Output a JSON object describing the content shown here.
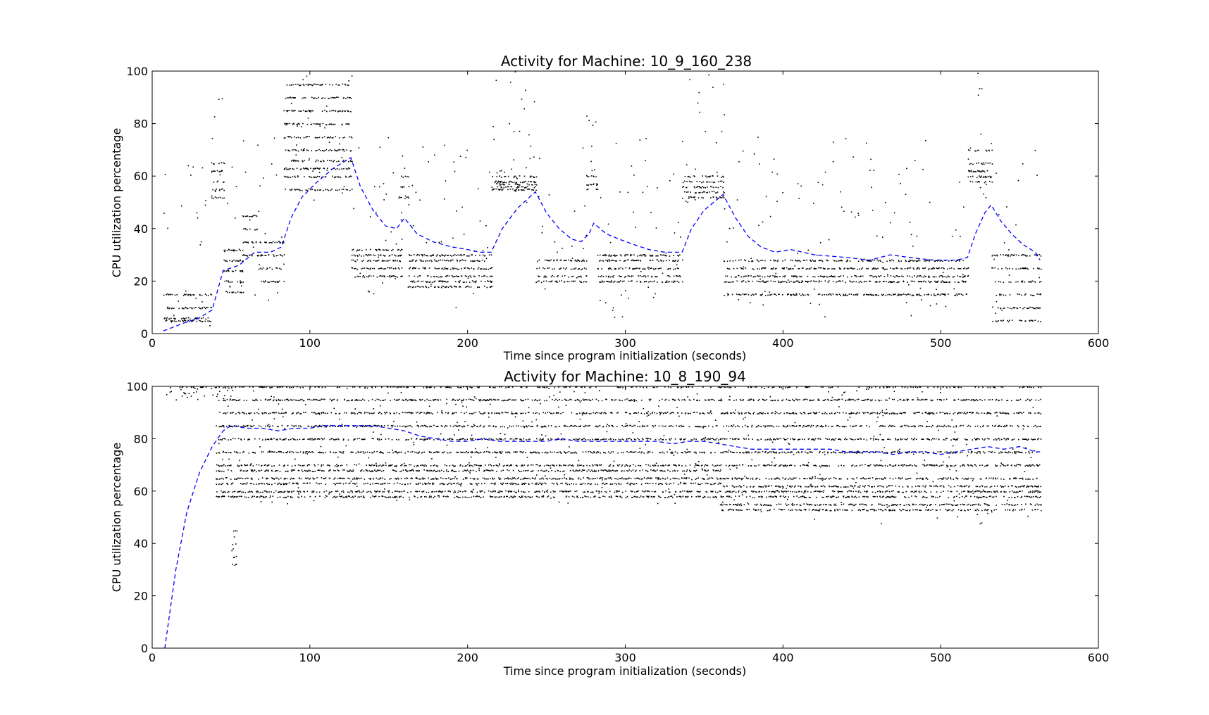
{
  "chart_data": [
    {
      "type": "scatter",
      "title": "Activity for Machine: 10_9_160_238",
      "xlabel": "Time since program initialization (seconds)",
      "ylabel": "CPU utilization percentage",
      "xlim": [
        0,
        600
      ],
      "ylim": [
        0,
        100
      ],
      "xticks": [
        0,
        100,
        200,
        300,
        400,
        500,
        600
      ],
      "yticks": [
        0,
        20,
        40,
        60,
        80,
        100
      ],
      "grid": false,
      "point_color": "#000000",
      "series": [
        {
          "style": "black dots",
          "segments": [
            {
              "x_range": [
                7,
                37
              ],
              "levels": [
                5,
                6,
                10,
                15
              ],
              "scatter_range": [
                3,
                65
              ]
            },
            {
              "x_range": [
                37,
                45
              ],
              "levels": [
                52,
                55,
                58,
                62,
                65
              ],
              "scatter_range": [
                50,
                100
              ]
            },
            {
              "x_range": [
                45,
                57
              ],
              "levels": [
                16,
                20,
                24,
                28,
                32
              ],
              "scatter_range": [
                5,
                65
              ]
            },
            {
              "x_range": [
                57,
                67
              ],
              "levels": [
                30,
                35,
                40,
                45
              ],
              "scatter_range": [
                10,
                80
              ]
            },
            {
              "x_range": [
                67,
                83
              ],
              "levels": [
                20,
                25,
                30,
                35
              ],
              "scatter_range": [
                10,
                80
              ]
            },
            {
              "x_range": [
                83,
                126
              ],
              "levels": [
                55,
                60,
                63,
                66,
                70,
                75,
                80,
                85,
                90,
                95
              ],
              "scatter_range": [
                50,
                100
              ]
            },
            {
              "x_range": [
                126,
                158
              ],
              "levels": [
                22,
                25,
                28,
                30,
                32
              ],
              "scatter_range": [
                15,
                80
              ]
            },
            {
              "x_range": [
                156,
                162
              ],
              "levels": [
                52,
                56,
                60
              ],
              "scatter_range": [
                45,
                75
              ]
            },
            {
              "x_range": [
                162,
                215
              ],
              "levels": [
                18,
                20,
                22,
                25,
                28,
                30
              ],
              "scatter_range": [
                10,
                75
              ]
            },
            {
              "x_range": [
                215,
                243
              ],
              "levels": [
                55,
                56,
                57,
                58,
                60
              ],
              "scatter_range": [
                50,
                100
              ]
            },
            {
              "x_range": [
                243,
                275
              ],
              "levels": [
                20,
                22,
                25,
                28
              ],
              "scatter_range": [
                15,
                75
              ]
            },
            {
              "x_range": [
                275,
                282
              ],
              "levels": [
                55,
                57,
                60
              ],
              "scatter_range": [
                50,
                90
              ]
            },
            {
              "x_range": [
                282,
                336
              ],
              "levels": [
                20,
                22,
                25,
                28,
                30
              ],
              "scatter_range": [
                5,
                75
              ]
            },
            {
              "x_range": [
                336,
                362
              ],
              "levels": [
                52,
                54,
                56,
                58,
                60
              ],
              "scatter_range": [
                50,
                100
              ]
            },
            {
              "x_range": [
                362,
                517
              ],
              "levels": [
                15,
                20,
                22,
                25,
                28
              ],
              "scatter_range": [
                5,
                75
              ]
            },
            {
              "x_range": [
                517,
                532
              ],
              "levels": [
                58,
                60,
                62,
                65,
                70
              ],
              "scatter_range": [
                50,
                100
              ]
            },
            {
              "x_range": [
                532,
                563
              ],
              "levels": [
                5,
                10,
                15,
                20,
                25,
                30
              ],
              "scatter_range": [
                5,
                70
              ]
            }
          ]
        },
        {
          "style": "blue dashed line",
          "color": "#0000ff",
          "x": [
            7,
            20,
            30,
            38,
            45,
            55,
            65,
            75,
            82,
            88,
            95,
            105,
            115,
            126,
            132,
            140,
            148,
            155,
            160,
            168,
            178,
            190,
            200,
            208,
            215,
            222,
            232,
            243,
            250,
            258,
            266,
            272,
            277,
            280,
            288,
            296,
            305,
            315,
            325,
            336,
            342,
            350,
            362,
            370,
            378,
            386,
            395,
            405,
            420,
            440,
            455,
            468,
            480,
            495,
            510,
            517,
            522,
            528,
            532,
            538,
            545,
            552,
            560,
            563
          ],
          "y": [
            1,
            4,
            6,
            9,
            24,
            26,
            31,
            31,
            33,
            44,
            52,
            58,
            63,
            67,
            56,
            47,
            41,
            40,
            44,
            38,
            35,
            33,
            32,
            31,
            31,
            40,
            48,
            54,
            46,
            40,
            36,
            35,
            38,
            42,
            38,
            36,
            34,
            32,
            31,
            31,
            40,
            47,
            53,
            44,
            37,
            33,
            31,
            32,
            30,
            29,
            28,
            30,
            29,
            28,
            28,
            29,
            38,
            46,
            49,
            43,
            38,
            34,
            31,
            28
          ]
        }
      ]
    },
    {
      "type": "scatter",
      "title": "Activity for Machine: 10_8_190_94",
      "xlabel": "Time since program initialization (seconds)",
      "ylabel": "CPU utilization percentage",
      "xlim": [
        0,
        600
      ],
      "ylim": [
        0,
        100
      ],
      "xticks": [
        0,
        100,
        200,
        300,
        400,
        500,
        600
      ],
      "yticks": [
        0,
        20,
        40,
        60,
        80,
        100
      ],
      "grid": false,
      "point_color": "#000000",
      "series": [
        {
          "style": "black dots",
          "segments": [
            {
              "x_range": [
                7,
                50
              ],
              "levels": [
                100
              ],
              "scatter_range": [
                95,
                100
              ]
            },
            {
              "x_range": [
                40,
                360
              ],
              "levels": [
                100,
                95,
                90,
                85,
                80,
                75,
                70,
                68,
                65,
                63,
                60,
                58
              ],
              "scatter_range": [
                55,
                100
              ]
            },
            {
              "x_range": [
                360,
                563
              ],
              "levels": [
                100,
                95,
                90,
                85,
                80,
                75,
                70,
                65,
                62,
                60,
                58,
                55,
                53
              ],
              "scatter_range": [
                47,
                100
              ]
            },
            {
              "x_range": [
                50,
                53
              ],
              "levels": [
                32,
                35,
                40,
                45
              ],
              "scatter_range": [
                30,
                45
              ]
            }
          ]
        },
        {
          "style": "blue dashed line",
          "color": "#0000ff",
          "x": [
            8,
            15,
            22,
            30,
            38,
            45,
            50,
            60,
            70,
            80,
            90,
            100,
            110,
            120,
            130,
            140,
            150,
            160,
            170,
            180,
            190,
            200,
            210,
            220,
            230,
            240,
            250,
            260,
            270,
            280,
            290,
            300,
            310,
            320,
            330,
            340,
            350,
            360,
            370,
            380,
            390,
            400,
            410,
            420,
            430,
            440,
            450,
            460,
            470,
            480,
            490,
            500,
            510,
            520,
            530,
            540,
            550,
            560,
            563
          ],
          "y": [
            0,
            30,
            52,
            67,
            77,
            83,
            85,
            84,
            84,
            83,
            84,
            84,
            85,
            85,
            85,
            85,
            84,
            83,
            81,
            80,
            79,
            79,
            80,
            79,
            79,
            79,
            79,
            80,
            79,
            79,
            79,
            79,
            79,
            79,
            78,
            79,
            79,
            78,
            77,
            76,
            76,
            76,
            76,
            76,
            76,
            75,
            75,
            75,
            74,
            75,
            75,
            74,
            75,
            76,
            77,
            76,
            77,
            75,
            75
          ]
        }
      ]
    }
  ]
}
